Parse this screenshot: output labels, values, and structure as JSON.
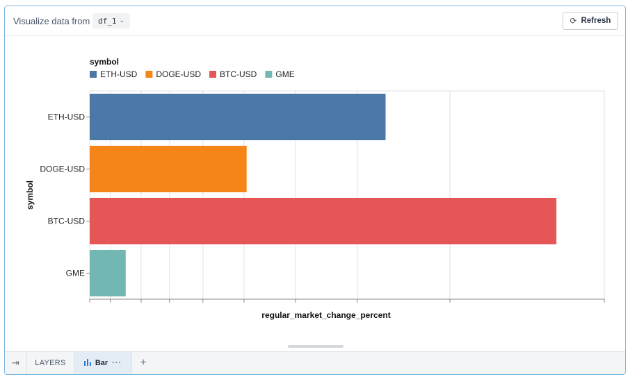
{
  "toolbar": {
    "source_label": "Visualize data from",
    "source_value": "df_1",
    "source_chevron_icon": "chevron-down-icon",
    "refresh_icon": "refresh-icon",
    "refresh_label": "Refresh"
  },
  "chart_data": {
    "type": "bar",
    "orientation": "horizontal",
    "title": "",
    "xlabel": "regular_market_change_percent",
    "ylabel": "symbol",
    "legend_title": "symbol",
    "legend_position": "top-left",
    "grid": true,
    "categories": [
      "ETH-USD",
      "DOGE-USD",
      "BTC-USD",
      "GME"
    ],
    "values": [
      5.75,
      3.05,
      9.07,
      0.7
    ],
    "xlim": [
      0,
      10
    ],
    "colors": [
      "#4c78a8",
      "#f58518",
      "#e45756",
      "#72b7b2"
    ],
    "x_tick_values": [
      0.4,
      1.0,
      1.55,
      2.2,
      3.0,
      4.0,
      5.2,
      7.0,
      10.0
    ]
  },
  "bottombar": {
    "toggle_icon": "indent-icon",
    "layers_label": "LAYERS",
    "tab_icon": "bar-chart-icon",
    "tab_label": "Bar",
    "tab_menu": "···",
    "add_label": "+"
  }
}
